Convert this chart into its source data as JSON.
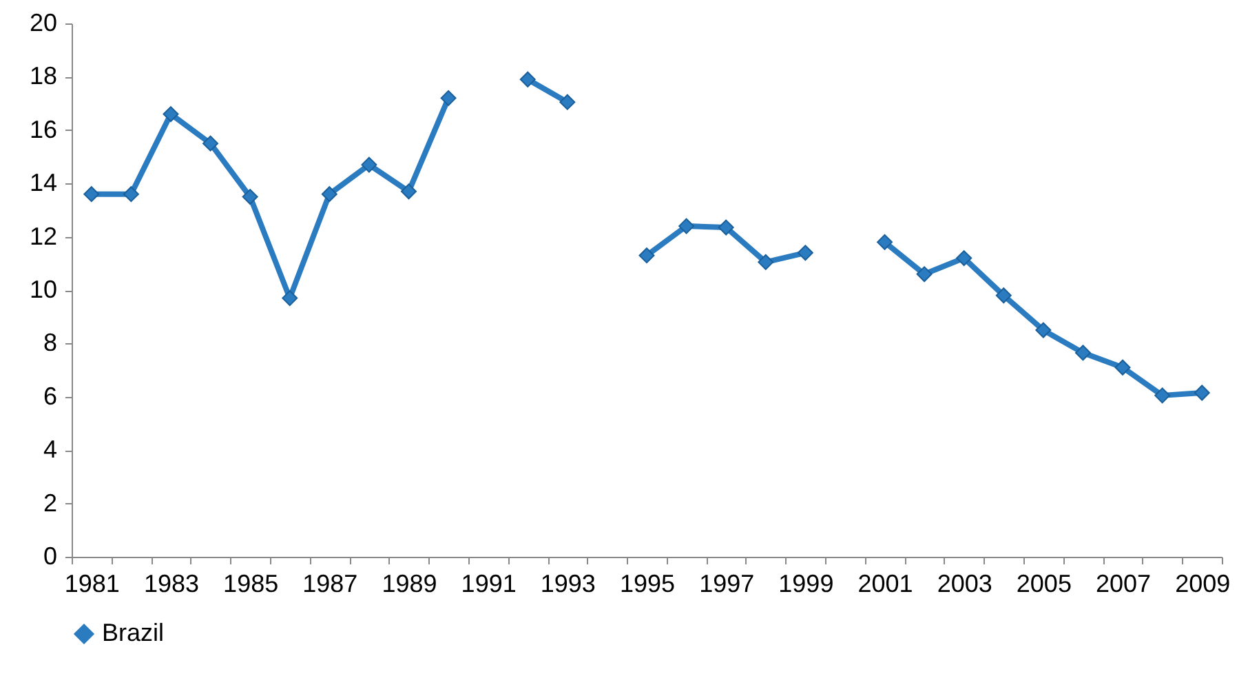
{
  "chart_data": {
    "type": "line",
    "categories": [
      "1981",
      null,
      "1983",
      null,
      "1985",
      null,
      "1987",
      null,
      "1989",
      null,
      "1991",
      null,
      "1993",
      null,
      "1995",
      null,
      "1997",
      null,
      "1999",
      null,
      "2001",
      null,
      "2003",
      null,
      "2005",
      null,
      "2007",
      null,
      "2009"
    ],
    "series": [
      {
        "name": "Brazil",
        "color": "#2b7bc0",
        "values": [
          13.6,
          13.6,
          16.6,
          15.5,
          13.5,
          9.7,
          13.6,
          14.7,
          13.7,
          17.2,
          null,
          17.9,
          17.05,
          null,
          11.3,
          12.4,
          12.35,
          11.05,
          11.4,
          null,
          11.8,
          10.6,
          11.2,
          9.8,
          8.5,
          7.65,
          7.1,
          6.05,
          6.15
        ]
      }
    ],
    "ylim": [
      0,
      20
    ],
    "yticks": [
      0,
      2,
      4,
      6,
      8,
      10,
      12,
      14,
      16,
      18,
      20
    ],
    "grid": false,
    "legend": "bottom",
    "marker": "diamond",
    "line_style": "solid"
  }
}
